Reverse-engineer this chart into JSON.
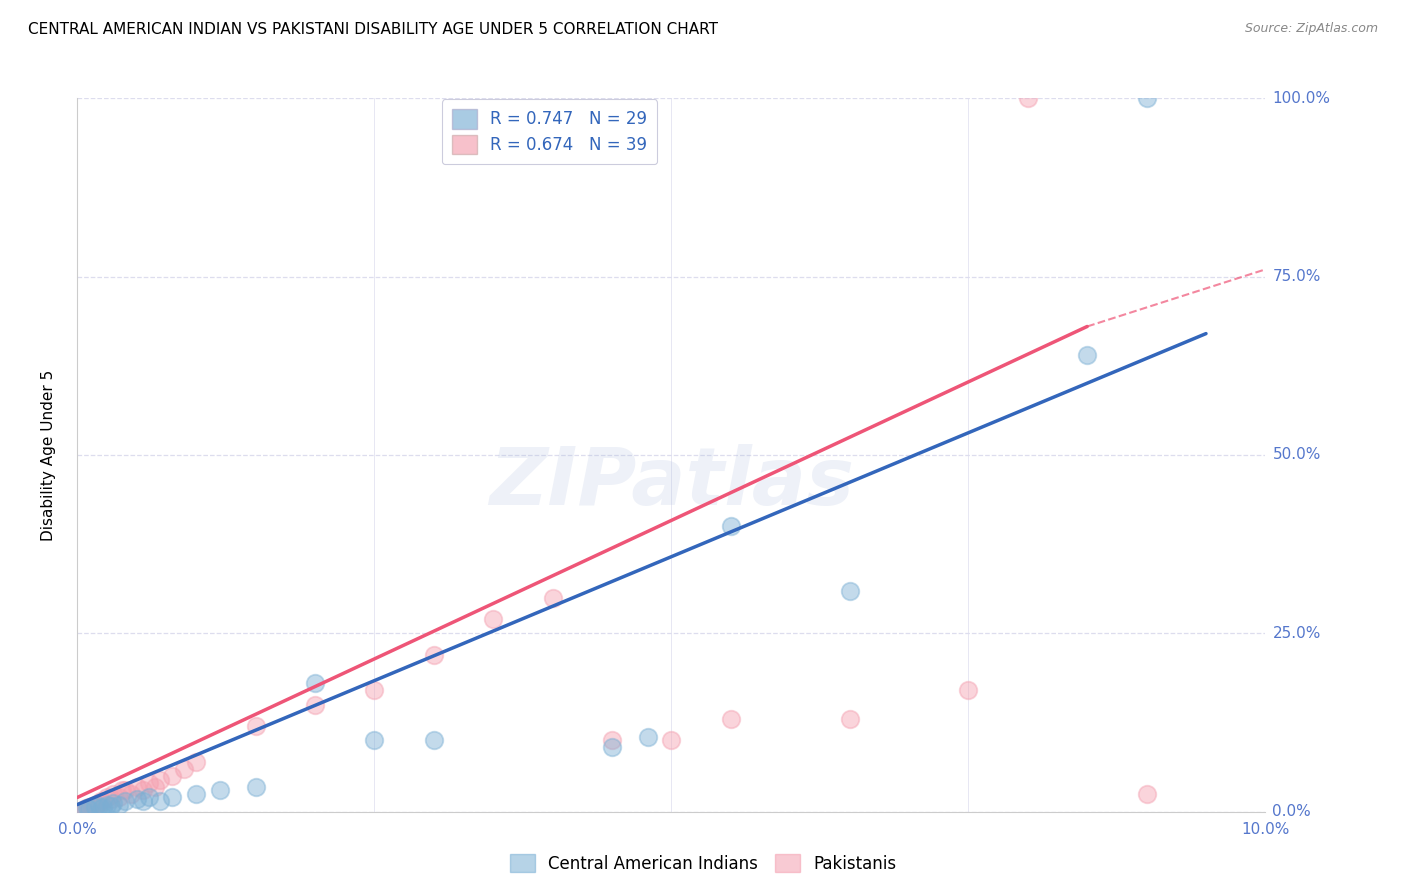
{
  "title": "CENTRAL AMERICAN INDIAN VS PAKISTANI DISABILITY AGE UNDER 5 CORRELATION CHART",
  "source": "Source: ZipAtlas.com",
  "ylabel": "Disability Age Under 5",
  "ytick_labels": [
    "100.0%",
    "75.0%",
    "50.0%",
    "25.0%",
    "0.0%"
  ],
  "ytick_values": [
    100,
    75,
    50,
    25,
    0
  ],
  "xmin": 0,
  "xmax": 10,
  "ymin": 0,
  "ymax": 100,
  "legend_blue_r": "R = 0.747",
  "legend_blue_n": "N = 29",
  "legend_pink_r": "R = 0.674",
  "legend_pink_n": "N = 39",
  "legend_label_blue": "Central American Indians",
  "legend_label_pink": "Pakistanis",
  "blue_color": "#7BAFD4",
  "pink_color": "#F4A0B0",
  "blue_scatter_x": [
    0.05,
    0.08,
    0.1,
    0.15,
    0.18,
    0.2,
    0.22,
    0.25,
    0.28,
    0.3,
    0.35,
    0.4,
    0.5,
    0.55,
    0.6,
    0.7,
    0.8,
    1.0,
    1.2,
    1.5,
    2.0,
    2.5,
    3.0,
    4.5,
    4.8,
    5.5,
    6.5,
    8.5,
    9.0
  ],
  "blue_scatter_y": [
    0.3,
    0.5,
    0.4,
    0.6,
    0.8,
    0.5,
    0.7,
    1.0,
    0.8,
    1.2,
    1.0,
    1.5,
    1.8,
    1.5,
    2.0,
    1.5,
    2.0,
    2.5,
    3.0,
    3.5,
    18.0,
    10.0,
    10.0,
    9.0,
    10.5,
    40.0,
    31.0,
    64.0,
    100.0
  ],
  "pink_scatter_x": [
    0.05,
    0.07,
    0.09,
    0.1,
    0.12,
    0.13,
    0.15,
    0.16,
    0.18,
    0.2,
    0.22,
    0.25,
    0.28,
    0.3,
    0.35,
    0.38,
    0.4,
    0.45,
    0.5,
    0.55,
    0.6,
    0.65,
    0.7,
    0.8,
    0.9,
    1.0,
    1.5,
    2.0,
    2.5,
    3.0,
    3.5,
    4.0,
    4.5,
    5.0,
    5.5,
    6.5,
    7.5,
    8.0,
    9.0
  ],
  "pink_scatter_y": [
    0.3,
    0.5,
    0.4,
    0.7,
    0.6,
    0.8,
    1.0,
    0.8,
    1.2,
    1.5,
    1.3,
    2.0,
    1.8,
    2.5,
    2.0,
    3.0,
    3.0,
    2.5,
    3.5,
    3.0,
    4.0,
    3.5,
    4.5,
    5.0,
    6.0,
    7.0,
    12.0,
    15.0,
    17.0,
    22.0,
    27.0,
    30.0,
    10.0,
    10.0,
    13.0,
    13.0,
    17.0,
    100.0,
    2.5
  ],
  "blue_line_x0": 0.0,
  "blue_line_x1": 9.5,
  "blue_line_y0": 1.0,
  "blue_line_y1": 67.0,
  "pink_solid_x0": 0.0,
  "pink_solid_x1": 8.5,
  "pink_solid_y0": 2.0,
  "pink_solid_y1": 68.0,
  "pink_dash_x0": 8.5,
  "pink_dash_x1": 10.0,
  "pink_dash_y0": 68.0,
  "pink_dash_y1": 76.0,
  "watermark_text": "ZIPatlas",
  "background_color": "#FFFFFF",
  "grid_color": "#DDDDEE",
  "title_fontsize": 11,
  "tick_label_color": "#5577CC",
  "source_color": "#888888"
}
